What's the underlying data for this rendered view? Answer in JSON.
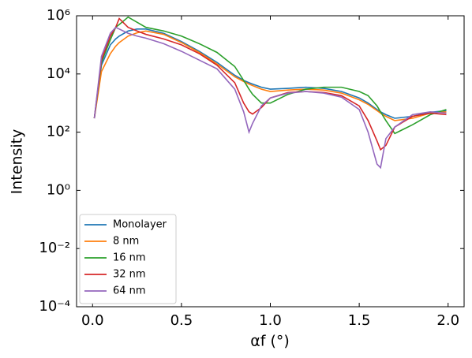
{
  "chart_data": {
    "type": "line",
    "x_label": "αf (°)",
    "y_label": "Intensity",
    "x": [
      0.01,
      0.05,
      0.1,
      0.13,
      0.15,
      0.2,
      0.25,
      0.3,
      0.4,
      0.5,
      0.6,
      0.7,
      0.8,
      0.85,
      0.88,
      0.9,
      0.95,
      1.0,
      1.1,
      1.2,
      1.3,
      1.4,
      1.5,
      1.55,
      1.6,
      1.62,
      1.65,
      1.7,
      1.8,
      1.9,
      1.99
    ],
    "series": [
      {
        "name": "Monolayer",
        "color": "#1f77b4",
        "values": [
          300,
          20000,
          100000,
          160000,
          200000,
          300000,
          350000,
          350000,
          250000,
          130000,
          60000,
          25000,
          9000,
          6000,
          5000,
          4500,
          3500,
          3000,
          3200,
          3500,
          3200,
          2500,
          1500,
          1000,
          600,
          500,
          400,
          300,
          350,
          480,
          550
        ]
      },
      {
        "name": "8 nm",
        "color": "#ff7f0e",
        "values": [
          300,
          12000,
          50000,
          90000,
          120000,
          200000,
          260000,
          300000,
          230000,
          120000,
          55000,
          22000,
          8000,
          5500,
          4500,
          4000,
          3000,
          2500,
          2800,
          3000,
          2800,
          2200,
          1300,
          900,
          550,
          450,
          350,
          250,
          300,
          450,
          500
        ]
      },
      {
        "name": "16 nm",
        "color": "#2ca02c",
        "values": [
          300,
          25000,
          150000,
          400000,
          500000,
          900000,
          600000,
          400000,
          300000,
          200000,
          110000,
          55000,
          18000,
          6000,
          3000,
          2000,
          1000,
          1000,
          2000,
          3000,
          3500,
          3500,
          2500,
          1800,
          800,
          500,
          250,
          90,
          180,
          400,
          600
        ]
      },
      {
        "name": "32 nm",
        "color": "#d62728",
        "values": [
          300,
          30000,
          200000,
          400000,
          800000,
          400000,
          300000,
          230000,
          160000,
          100000,
          50000,
          20000,
          5000,
          1000,
          500,
          420,
          700,
          1500,
          2300,
          2500,
          2300,
          1800,
          800,
          250,
          50,
          25,
          35,
          150,
          350,
          450,
          400
        ]
      },
      {
        "name": "64 nm",
        "color": "#9467bd",
        "values": [
          300,
          40000,
          250000,
          400000,
          350000,
          250000,
          200000,
          170000,
          110000,
          60000,
          30000,
          15000,
          3000,
          500,
          100,
          200,
          800,
          1500,
          2200,
          2500,
          2200,
          1600,
          600,
          100,
          8,
          6,
          60,
          150,
          400,
          500,
          450
        ]
      }
    ],
    "xlim": [
      -0.09,
      2.09
    ],
    "xticks": [
      {
        "value": 0,
        "label": "0.0"
      },
      0.5,
      {
        "value": 1,
        "label": "1.0"
      },
      1.5,
      {
        "value": 2,
        "label": "2.0"
      }
    ],
    "ylim": [
      0.0001,
      1000000
    ],
    "log_y": true,
    "yticks": [
      {
        "value": 0.0001,
        "label": "10⁻⁴"
      },
      {
        "value": 0.01,
        "label": "10⁻²"
      },
      {
        "value": 1,
        "label": "10⁰"
      },
      {
        "value": 100,
        "label": "10²"
      },
      {
        "value": 10000,
        "label": "10⁴"
      },
      {
        "value": 1000000,
        "label": "10⁶"
      }
    ],
    "legend": "lower left"
  }
}
